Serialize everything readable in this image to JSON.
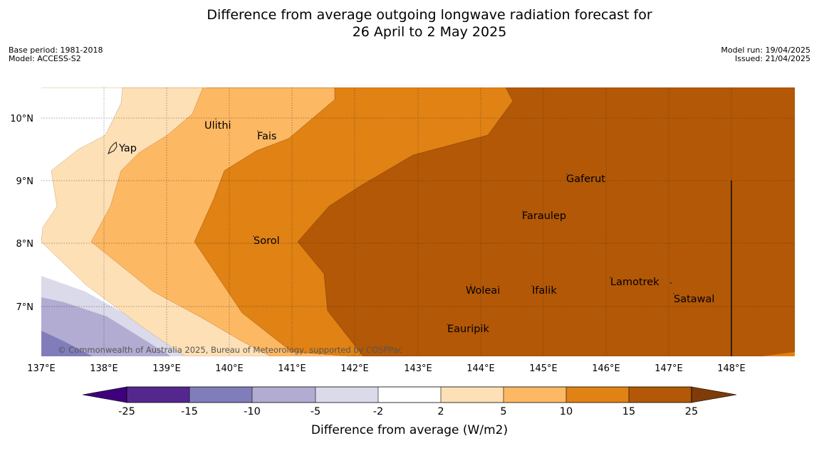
{
  "header": {
    "title_line1": "Difference from average outgoing longwave radiation forecast for",
    "title_line2": "26 April to 2 May 2025",
    "base_period": "Base period: 1981-2018",
    "model": "Model: ACCESS-S2",
    "model_run": "Model run: 19/04/2025",
    "issued": "Issued: 21/04/2025"
  },
  "map": {
    "x_ticks": [
      "137°E",
      "138°E",
      "139°E",
      "140°E",
      "141°E",
      "142°E",
      "143°E",
      "144°E",
      "145°E",
      "146°E",
      "147°E",
      "148°E"
    ],
    "y_ticks": [
      "10°N",
      "9°N",
      "8°N",
      "7°N"
    ],
    "places": {
      "yap": "Yap",
      "ulithi": "Ulithi",
      "fais": "Fais",
      "gaferut": "Gaferut",
      "faraulep": "Faraulep",
      "sorol": "Sorol",
      "woleai": "Woleai",
      "ifalik": "Ifalik",
      "lamotrek": "Lamotrek",
      "satawal": "Satawal",
      "eauripik": "Eauripik"
    },
    "credit": "© Commonwealth of Australia 2025, Bureau of Meteorology, supported by COSPPac"
  },
  "colorbar": {
    "ticks": [
      "-25",
      "-15",
      "-10",
      "-5",
      "-2",
      "2",
      "5",
      "10",
      "15",
      "25"
    ],
    "label": "Difference from average (W/m2)",
    "colors": [
      "#3f007d",
      "#54278f",
      "#807dba",
      "#b2abd2",
      "#dadaeb",
      "#ffffff",
      "#fee0b6",
      "#fdb863",
      "#e08214",
      "#b35806",
      "#7f3b08"
    ]
  }
}
